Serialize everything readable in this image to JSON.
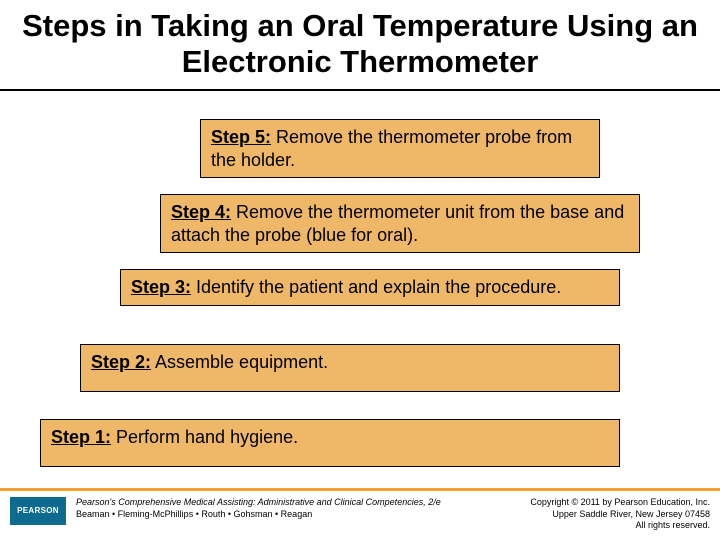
{
  "title": "Steps in Taking an Oral Temperature Using an Electronic Thermometer",
  "steps": {
    "s5": {
      "label": "Step 5:",
      "text": " Remove the thermometer probe from the holder."
    },
    "s4": {
      "label": "Step 4:",
      "text": " Remove the thermometer unit from the base and attach the probe (blue for oral)."
    },
    "s3": {
      "label": "Step 3:",
      "text": " Identify the patient and explain the procedure."
    },
    "s2": {
      "label": "Step 2:",
      "text": " Assemble equipment."
    },
    "s1": {
      "label": "Step 1:",
      "text": " Perform hand hygiene."
    }
  },
  "footer": {
    "logo": "PEARSON",
    "book_title": "Pearson's Comprehensive Medical Assisting: Administrative and Clinical Competencies, 2/e",
    "authors": "Beaman • Fleming-McPhillips • Routh • Gohsman • Reagan",
    "copyright1": "Copyright © 2011 by Pearson Education, Inc.",
    "copyright2": "Upper Saddle River, New Jersey 07458",
    "copyright3": "All rights reserved."
  },
  "colors": {
    "step_bg": "#eeb868",
    "divider": "#f0a030",
    "logo_bg": "#0e6b8f"
  }
}
